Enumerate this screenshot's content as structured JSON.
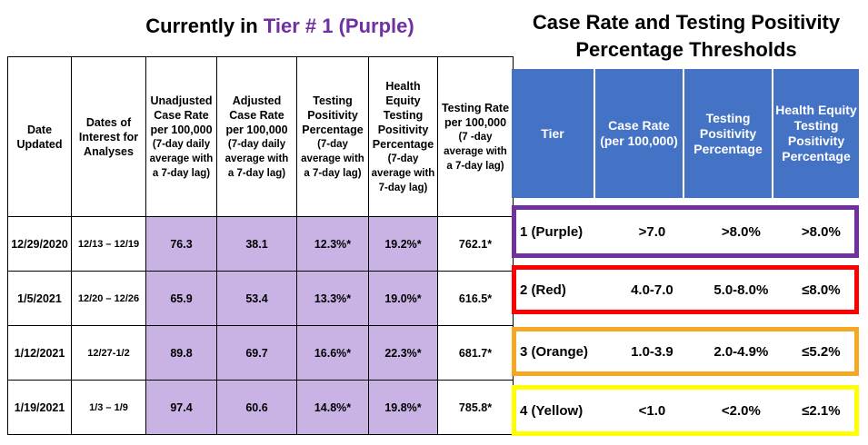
{
  "left_title": {
    "prefix": "Currently in ",
    "tier": "Tier # 1 (Purple)"
  },
  "right_title": {
    "line1": "Case Rate and Testing Positivity",
    "line2": "Percentage Thresholds"
  },
  "table": {
    "headers": [
      [
        "Date",
        "Updated"
      ],
      [
        "Dates of",
        "Interest for",
        "Analyses"
      ],
      [
        "Unadjusted",
        "Case Rate",
        "per 100,000",
        "(7-day daily",
        "average with",
        "a 7-day lag)"
      ],
      [
        "Adjusted",
        "Case Rate",
        "per 100,000",
        "(7-day daily",
        "average with",
        "a 7-day lag)"
      ],
      [
        "Testing",
        "Positivity",
        "Percentage",
        "(7-day",
        "average with",
        "a 7-day lag)"
      ],
      [
        "Health",
        "Equity",
        "Testing",
        "Positivity",
        "Percentage",
        "(7-day",
        "average with",
        "7-day lag)"
      ],
      [
        "Testing Rate",
        "per 100,000",
        "(7 -day",
        "average with",
        "a 7-day lag)"
      ]
    ],
    "rows": [
      [
        "12/29/2020",
        "12/13 – 12/19",
        "76.3",
        "38.1",
        "12.3%*",
        "19.2%*",
        "762.1*"
      ],
      [
        "1/5/2021",
        "12/20 – 12/26",
        "65.9",
        "53.4",
        "13.3%*",
        "19.0%*",
        "616.5*"
      ],
      [
        "1/12/2021",
        "12/27-1/2",
        "89.8",
        "69.7",
        "16.6%*",
        "22.3%*",
        "681.7*"
      ],
      [
        "1/19/2021",
        "1/3 – 1/9",
        "97.4",
        "60.6",
        "14.8%*",
        "19.8%*",
        "785.8*"
      ]
    ]
  },
  "thresholds": {
    "headers": [
      "Tier",
      "Case Rate (per 100,000)",
      "Testing Positivity Percentage",
      "Health Equity Testing Positivity Percentage"
    ],
    "tiers": [
      {
        "cells": [
          "1 (Purple)",
          ">7.0",
          ">8.0%",
          ">8.0%"
        ],
        "color": "#7030A0"
      },
      {
        "cells": [
          "2 (Red)",
          "4.0-7.0",
          "5.0-8.0%",
          "≤8.0%"
        ],
        "color": "#FF0000"
      },
      {
        "cells": [
          "3 (Orange)",
          "1.0-3.9",
          "2.0-4.9%",
          "≤5.2%"
        ],
        "color": "#F5A623"
      },
      {
        "cells": [
          "4 (Yellow)",
          "<1.0",
          "<2.0%",
          "≤2.1%"
        ],
        "color": "#FFFF00"
      }
    ]
  }
}
